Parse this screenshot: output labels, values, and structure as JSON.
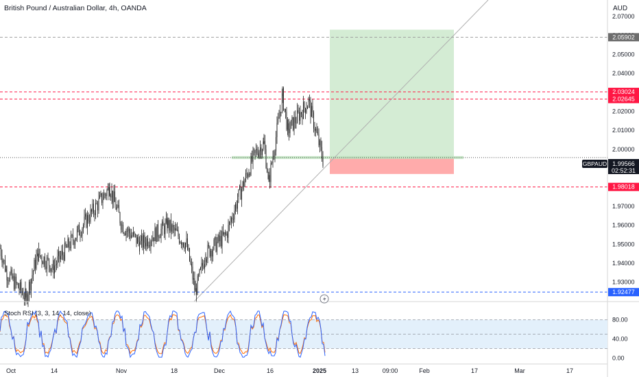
{
  "header": {
    "symbol_title": "British Pound / Australian Dollar, 4h, OANDA"
  },
  "currency_label": "AUD",
  "price_axis": {
    "ticks": [
      "2.07000",
      "2.06000",
      "2.05000",
      "2.04000",
      "2.03000",
      "2.02000",
      "2.01000",
      "2.00000",
      "1.99000",
      "1.98000",
      "1.97000",
      "1.96000",
      "1.95000",
      "1.94000",
      "1.93000"
    ]
  },
  "time_axis": {
    "labels": [
      "Oct",
      "14",
      "Nov",
      "18",
      "Dec",
      "16",
      "2025",
      "13",
      "09:00",
      "Feb",
      "17",
      "Mar",
      "17"
    ]
  },
  "levels": [
    {
      "value": "2.05902",
      "style": "dashed",
      "color": "#9e9e9e",
      "badge": "#6d6d6d"
    },
    {
      "value": "2.03024",
      "style": "dashed",
      "color": "#ff1744",
      "badge": "#ff1744"
    },
    {
      "value": "2.02645",
      "style": "dashed",
      "color": "#ff1744",
      "badge": "#ff1744"
    },
    {
      "value": "1.98018",
      "style": "dashed",
      "color": "#ff1744",
      "badge": "#ff1744"
    },
    {
      "value": "1.92477",
      "style": "dashed",
      "color": "#2962ff",
      "badge": "#2962ff"
    }
  ],
  "current": {
    "label": "GBPAUD",
    "price": "1.99566",
    "countdown": "02:52:31"
  },
  "position": {
    "type": "long",
    "entry": 1.99566,
    "target": 2.063,
    "stop": 1.987,
    "profit_color": "#d4ecd4",
    "loss_color": "#ffabab"
  },
  "indicator": {
    "title": "Stoch RSI (3, 3, 14, 14, close)",
    "ticks": [
      "80.00",
      "40.00",
      "0.00"
    ],
    "band_color": "#e3f0fb",
    "k_color": "#2962ff",
    "d_color": "#ff6d00"
  },
  "chart_data": {
    "type": "candlestick",
    "symbol": "GBPAUD",
    "interval": "4h",
    "ylim": [
      1.921,
      2.077
    ],
    "approx_path": [
      [
        "Oct",
        1.948
      ],
      [
        "Oct",
        1.935
      ],
      [
        "Oct",
        1.922
      ],
      [
        "14",
        1.945
      ],
      [
        "14",
        1.938
      ],
      [
        "Nov",
        1.98
      ],
      [
        "Nov",
        1.96
      ],
      [
        "Nov",
        1.95
      ],
      [
        "Nov",
        1.96
      ],
      [
        "18",
        1.95
      ],
      [
        "18",
        1.925
      ],
      [
        "18",
        1.945
      ],
      [
        "18",
        1.955
      ],
      [
        "Dec",
        1.975
      ],
      [
        "Dec",
        1.998
      ],
      [
        "16",
        2.003
      ],
      [
        "16",
        1.983
      ],
      [
        "16",
        2.028
      ],
      [
        "16",
        2.01
      ],
      [
        "2025",
        2.025
      ],
      [
        "2025",
        1.993
      ]
    ],
    "stoch_rsi_range": [
      0,
      100
    ]
  }
}
